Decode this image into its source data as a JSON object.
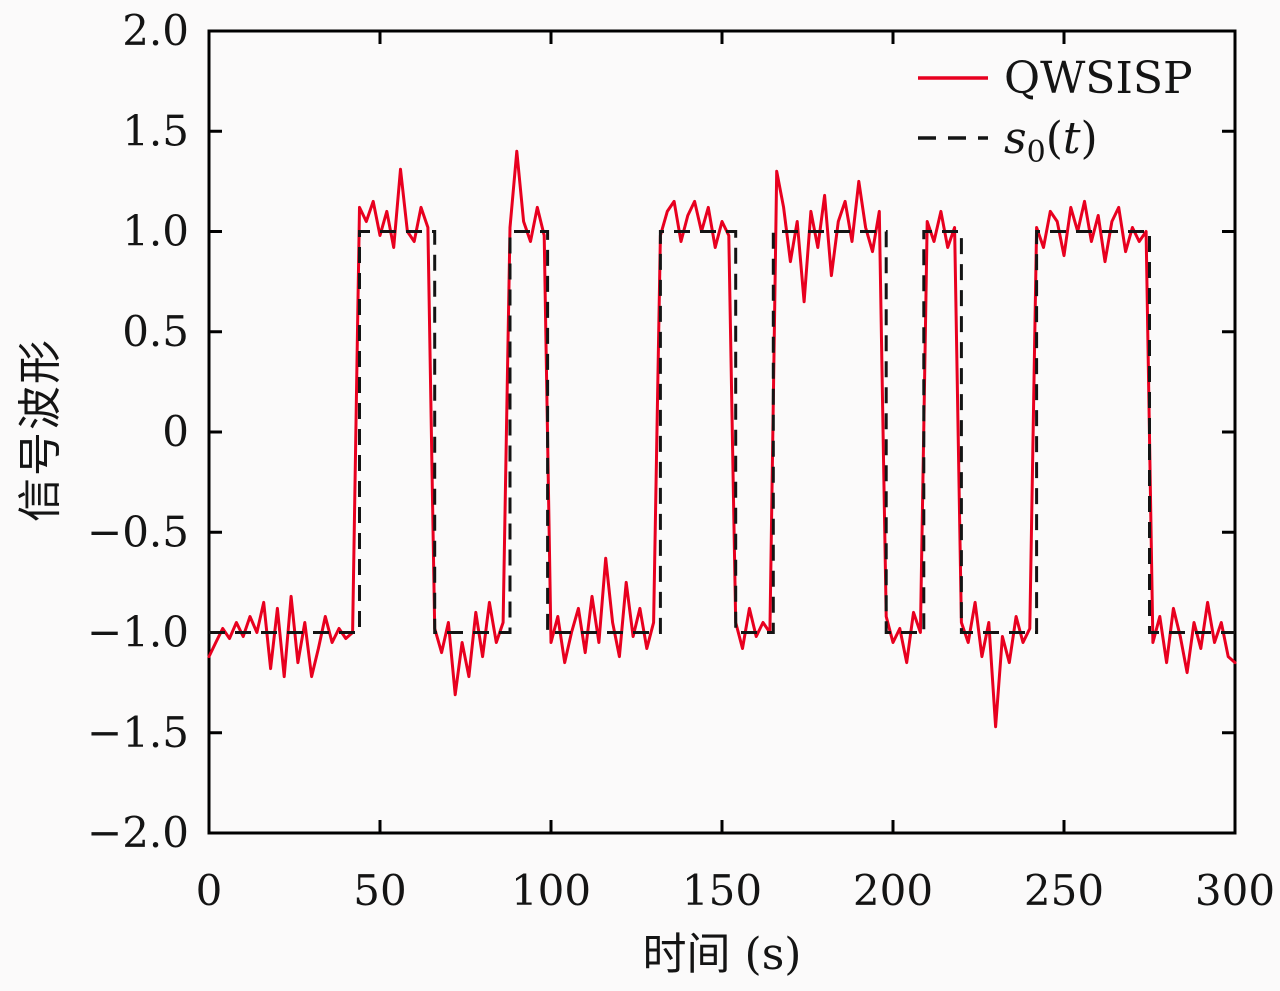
{
  "figure": {
    "background_color": "#fbfafa",
    "frame_color": "#000000",
    "tick_color": "#000000",
    "legend": [
      {
        "label": "QWSISP",
        "color": "#e8001f",
        "style": "solid"
      },
      {
        "label": "s0(t)",
        "render": {
          "type": "math-sub",
          "base": "s",
          "sub": "0",
          "open": "(",
          "arg": "t",
          "close": ")"
        },
        "color": "#141414",
        "style": "dashed"
      }
    ]
  },
  "chart_data": {
    "type": "line",
    "title": "",
    "xlabel": "时间 (s)",
    "ylabel": "信号波形",
    "xlim": [
      0,
      300
    ],
    "ylim": [
      -2.0,
      2.0
    ],
    "grid": false,
    "legend_position": "top-right-inside",
    "xticks": {
      "values": [
        0,
        50,
        100,
        150,
        200,
        250,
        300
      ],
      "labels": [
        "0",
        "50",
        "100",
        "150",
        "200",
        "250",
        "300"
      ]
    },
    "yticks": {
      "values": [
        2.0,
        1.5,
        1.0,
        0.5,
        0,
        -0.5,
        -1.0,
        -1.5,
        -2.0
      ],
      "labels": [
        "2.0",
        "1.5",
        "1.0",
        "0.5",
        "0",
        "−0.5",
        "−1.0",
        "−1.5",
        "−2.0"
      ]
    },
    "series": [
      {
        "name": "QWSISP",
        "kind": "noisy-line",
        "color": "#e8001f",
        "line_width": 3,
        "x_start": 0,
        "x_step": 2,
        "values": [
          -1.12,
          -1.05,
          -0.98,
          -1.03,
          -0.95,
          -1.02,
          -0.92,
          -1.0,
          -0.85,
          -1.18,
          -0.88,
          -1.22,
          -0.82,
          -1.15,
          -0.95,
          -1.22,
          -1.08,
          -0.92,
          -1.05,
          -0.98,
          -1.03,
          -1.0,
          1.12,
          1.05,
          1.15,
          0.98,
          1.1,
          0.92,
          1.31,
          1.0,
          0.95,
          1.12,
          1.02,
          -0.98,
          -1.1,
          -0.95,
          -1.31,
          -1.05,
          -1.22,
          -0.9,
          -1.12,
          -0.85,
          -1.05,
          -0.95,
          1.02,
          1.4,
          1.05,
          0.95,
          1.12,
          0.98,
          -1.05,
          -0.92,
          -1.15,
          -1.0,
          -0.88,
          -1.1,
          -0.82,
          -1.05,
          -0.63,
          -0.95,
          -1.12,
          -0.75,
          -1.02,
          -0.88,
          -1.08,
          -0.95,
          0.98,
          1.1,
          1.15,
          0.95,
          1.08,
          1.15,
          1.0,
          1.12,
          0.92,
          1.05,
          0.98,
          -0.95,
          -1.08,
          -0.88,
          -1.02,
          -0.95,
          -1.0,
          1.3,
          1.12,
          0.85,
          1.05,
          0.65,
          1.1,
          0.92,
          1.18,
          0.78,
          1.05,
          1.15,
          0.95,
          1.25,
          1.02,
          0.9,
          1.1,
          -0.92,
          -1.05,
          -0.98,
          -1.15,
          -0.9,
          -1.0,
          1.05,
          0.95,
          1.1,
          0.92,
          1.02,
          -0.95,
          -1.05,
          -0.85,
          -1.12,
          -0.95,
          -1.47,
          -1.02,
          -1.15,
          -0.92,
          -1.05,
          -0.98,
          1.02,
          0.92,
          1.1,
          1.05,
          0.88,
          1.12,
          1.0,
          1.15,
          0.95,
          1.08,
          0.85,
          1.05,
          1.12,
          0.9,
          1.02,
          0.95,
          1.0,
          -1.05,
          -0.92,
          -1.15,
          -0.88,
          -1.02,
          -1.2,
          -0.95,
          -1.08,
          -0.85,
          -1.05,
          -0.95,
          -1.12,
          -1.15
        ]
      },
      {
        "name": "s0(t)",
        "kind": "square-wave",
        "color": "#141414",
        "line_width": 3,
        "dash": [
          16,
          10
        ],
        "bit_period_s": 11,
        "segments": [
          {
            "from": 0,
            "to": 44,
            "level": -1
          },
          {
            "from": 44,
            "to": 66,
            "level": 1
          },
          {
            "from": 66,
            "to": 88,
            "level": -1
          },
          {
            "from": 88,
            "to": 99,
            "level": 1
          },
          {
            "from": 99,
            "to": 132,
            "level": -1
          },
          {
            "from": 132,
            "to": 154,
            "level": 1
          },
          {
            "from": 154,
            "to": 165,
            "level": -1
          },
          {
            "from": 165,
            "to": 198,
            "level": 1
          },
          {
            "from": 198,
            "to": 209,
            "level": -1
          },
          {
            "from": 209,
            "to": 220,
            "level": 1
          },
          {
            "from": 220,
            "to": 242,
            "level": -1
          },
          {
            "from": 242,
            "to": 275,
            "level": 1
          },
          {
            "from": 275,
            "to": 300,
            "level": -1
          }
        ]
      }
    ]
  }
}
